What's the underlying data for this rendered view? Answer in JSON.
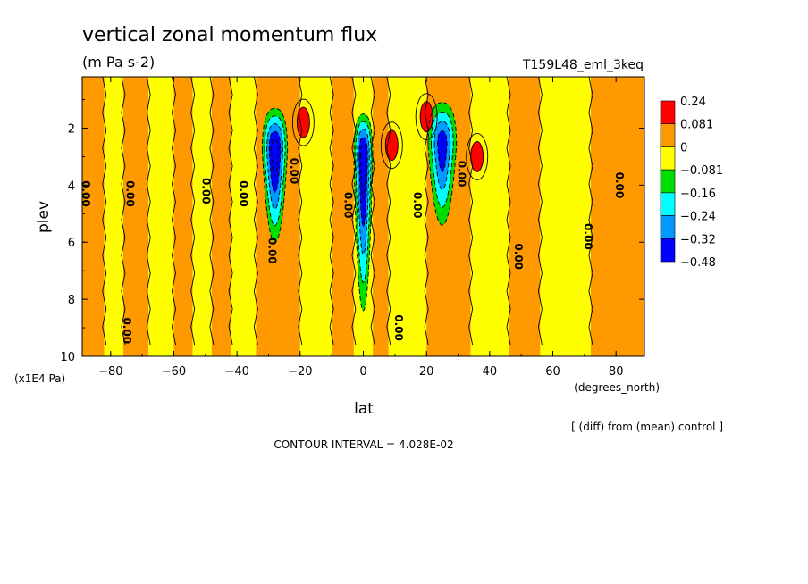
{
  "chart_data": {
    "type": "heatmap",
    "title": "vertical zonal momentum flux",
    "units_label": "(m Pa s-2)",
    "run_label": "T159L48_eml_3keq",
    "xlabel": "lat",
    "xunits": "(degrees_north)",
    "ylabel": "plev",
    "yunits": "(x1E4 Pa)",
    "diff_note": "[ (diff) from (mean) control ]",
    "contour_interval": "CONTOUR INTERVAL = 4.028E-02",
    "xlim": [
      -89,
      89
    ],
    "ylim": [
      0.2,
      10
    ],
    "y_inverted": true,
    "xticks": [
      -80,
      -60,
      -40,
      -20,
      0,
      20,
      40,
      60,
      80
    ],
    "xtick_labels": [
      "−80",
      "−60",
      "−40",
      "−20",
      "0",
      "20",
      "40",
      "60",
      "80"
    ],
    "yticks": [
      2,
      4,
      6,
      8,
      10
    ],
    "ytick_labels": [
      "2",
      "4",
      "6",
      "8",
      "10"
    ],
    "legend": {
      "placement": "right",
      "labels": [
        "0.24",
        "0.081",
        "0",
        "−0.081",
        "−0.16",
        "−0.24",
        "−0.32",
        "−0.48"
      ],
      "colors": [
        "#ff0000",
        "#ff9900",
        "#ffff00",
        "#00dd00",
        "#00ffff",
        "#0099ff",
        "#0000ff"
      ]
    },
    "background_pattern": [
      {
        "from": -89,
        "to": -82,
        "level": 0.05
      },
      {
        "from": -82,
        "to": -76,
        "level": -0.03
      },
      {
        "from": -76,
        "to": -68,
        "level": 0.05
      },
      {
        "from": -68,
        "to": -60,
        "level": -0.03
      },
      {
        "from": -60,
        "to": -54,
        "level": 0.05
      },
      {
        "from": -54,
        "to": -48,
        "level": -0.03
      },
      {
        "from": -48,
        "to": -42,
        "level": 0.05
      },
      {
        "from": -42,
        "to": -34,
        "level": -0.03
      },
      {
        "from": -34,
        "to": -20,
        "level": 0.05
      },
      {
        "from": -20,
        "to": -10,
        "level": -0.03
      },
      {
        "from": -10,
        "to": -3,
        "level": 0.05
      },
      {
        "from": -3,
        "to": 3,
        "level": -0.03
      },
      {
        "from": 3,
        "to": 8,
        "level": 0.05
      },
      {
        "from": 8,
        "to": 20,
        "level": -0.03
      },
      {
        "from": 20,
        "to": 34,
        "level": 0.05
      },
      {
        "from": 34,
        "to": 46,
        "level": -0.03
      },
      {
        "from": 46,
        "to": 56,
        "level": 0.05
      },
      {
        "from": 56,
        "to": 72,
        "level": -0.03
      },
      {
        "from": 72,
        "to": 89,
        "level": 0.05
      }
    ],
    "features": [
      {
        "name": "sh-negative-lobe",
        "lat": -28,
        "plev": 2.8,
        "lat_width": 8,
        "plev_depth": 3.2,
        "min_value": -0.48
      },
      {
        "name": "equatorial-negative-column",
        "lat": 0,
        "plev": 3.0,
        "lat_width": 6,
        "plev_depth": 5.4,
        "min_value": -0.48
      },
      {
        "name": "nh-negative-lobe",
        "lat": 25,
        "plev": 2.6,
        "lat_width": 9,
        "plev_depth": 2.8,
        "min_value": -0.32
      },
      {
        "name": "positive-max-sh",
        "lat": -19,
        "plev": 1.8,
        "value": 0.24
      },
      {
        "name": "positive-max-eq",
        "lat": 9,
        "plev": 2.6,
        "value": 0.24
      },
      {
        "name": "positive-max-nh",
        "lat": 20,
        "plev": 1.6,
        "value": 0.24
      },
      {
        "name": "positive-max-nh2",
        "lat": 36,
        "plev": 3.0,
        "value": 0.24
      }
    ],
    "contour_labels": [
      {
        "text": "0.00",
        "lat": -89,
        "plev": 4.3
      },
      {
        "text": "0.00",
        "lat": -75,
        "plev": 4.3
      },
      {
        "text": "0.00",
        "lat": -51,
        "plev": 4.2
      },
      {
        "text": "0.00",
        "lat": -39,
        "plev": 4.3
      },
      {
        "text": "0.00",
        "lat": -30,
        "plev": 6.3
      },
      {
        "text": "0.00",
        "lat": -76,
        "plev": 9.1
      },
      {
        "text": "0.00",
        "lat": -23,
        "plev": 3.5
      },
      {
        "text": "0.00",
        "lat": -6,
        "plev": 4.7
      },
      {
        "text": "0.00",
        "lat": 10,
        "plev": 9.0
      },
      {
        "text": "0.00",
        "lat": 16,
        "plev": 4.7
      },
      {
        "text": "0.00",
        "lat": 30,
        "plev": 3.6
      },
      {
        "text": "0.00",
        "lat": 48,
        "plev": 6.5
      },
      {
        "text": "0.00",
        "lat": 70,
        "plev": 5.8
      },
      {
        "text": "0.00",
        "lat": 80,
        "plev": 4.0
      }
    ]
  }
}
